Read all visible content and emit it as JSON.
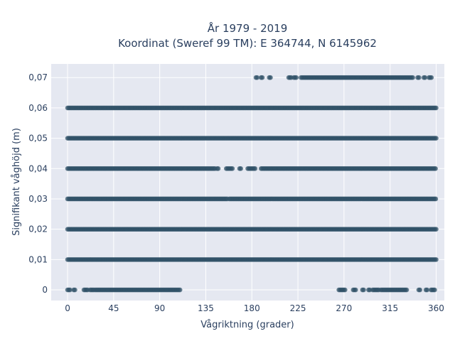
{
  "chart_data": {
    "type": "scatter",
    "title": "År 1979 - 2019",
    "subtitle": "Koordinat (Sweref 99 TM): E 364744, N 6145962",
    "xlabel": "Vågriktning (grader)",
    "ylabel": "Signifikant våghöjd (m)",
    "xlim": [
      -16,
      368
    ],
    "ylim": [
      -0.0035,
      0.0745
    ],
    "x_ticks": [
      0,
      45,
      90,
      135,
      180,
      225,
      270,
      315,
      360
    ],
    "y_ticks": [
      0,
      0.01,
      0.02,
      0.03,
      0.04,
      0.05,
      0.06,
      0.07
    ],
    "x_tick_labels": [
      "0",
      "45",
      "90",
      "135",
      "180",
      "225",
      "270",
      "315",
      "360"
    ],
    "y_tick_labels": [
      "0",
      "0,01",
      "0,02",
      "0,03",
      "0,04",
      "0,05",
      "0,06",
      "0,07"
    ],
    "grid": true,
    "marker_color": "#2f5066",
    "background_color": "#e5e8f1",
    "series": [
      {
        "bands": [
          {
            "y": 0.0,
            "ranges": [
              [
                0,
                3
              ],
              [
                6,
                8
              ],
              [
                16,
                20
              ],
              [
                22,
                26
              ],
              [
                27,
                110
              ],
              [
                265,
                272
              ],
              [
                279,
                282
              ],
              [
                288,
                290
              ],
              [
                294,
                296
              ],
              [
                298,
                304
              ],
              [
                306,
                332
              ],
              [
                343,
                345
              ],
              [
                350,
                352
              ],
              [
                355,
                359
              ]
            ]
          },
          {
            "y": 0.01,
            "ranges": [
              [
                0,
                360
              ]
            ]
          },
          {
            "y": 0.02,
            "ranges": [
              [
                0,
                360
              ]
            ]
          },
          {
            "y": 0.03,
            "ranges": [
              [
                0,
                156
              ],
              [
                158,
                360
              ]
            ]
          },
          {
            "y": 0.04,
            "ranges": [
              [
                0,
                144
              ],
              [
                146,
                148
              ],
              [
                155,
                162
              ],
              [
                168,
                170
              ],
              [
                176,
                184
              ],
              [
                189,
                360
              ]
            ]
          },
          {
            "y": 0.05,
            "ranges": [
              [
                0,
                360
              ]
            ]
          },
          {
            "y": 0.06,
            "ranges": [
              [
                0,
                360
              ]
            ]
          },
          {
            "y": 0.07,
            "ranges": [
              [
                184,
                186
              ],
              [
                189,
                191
              ],
              [
                197,
                199
              ],
              [
                216,
                219
              ],
              [
                221,
                224
              ],
              [
                228,
                338
              ],
              [
                342,
                344
              ],
              [
                348,
                350
              ],
              [
                353,
                356
              ]
            ]
          }
        ]
      }
    ]
  }
}
